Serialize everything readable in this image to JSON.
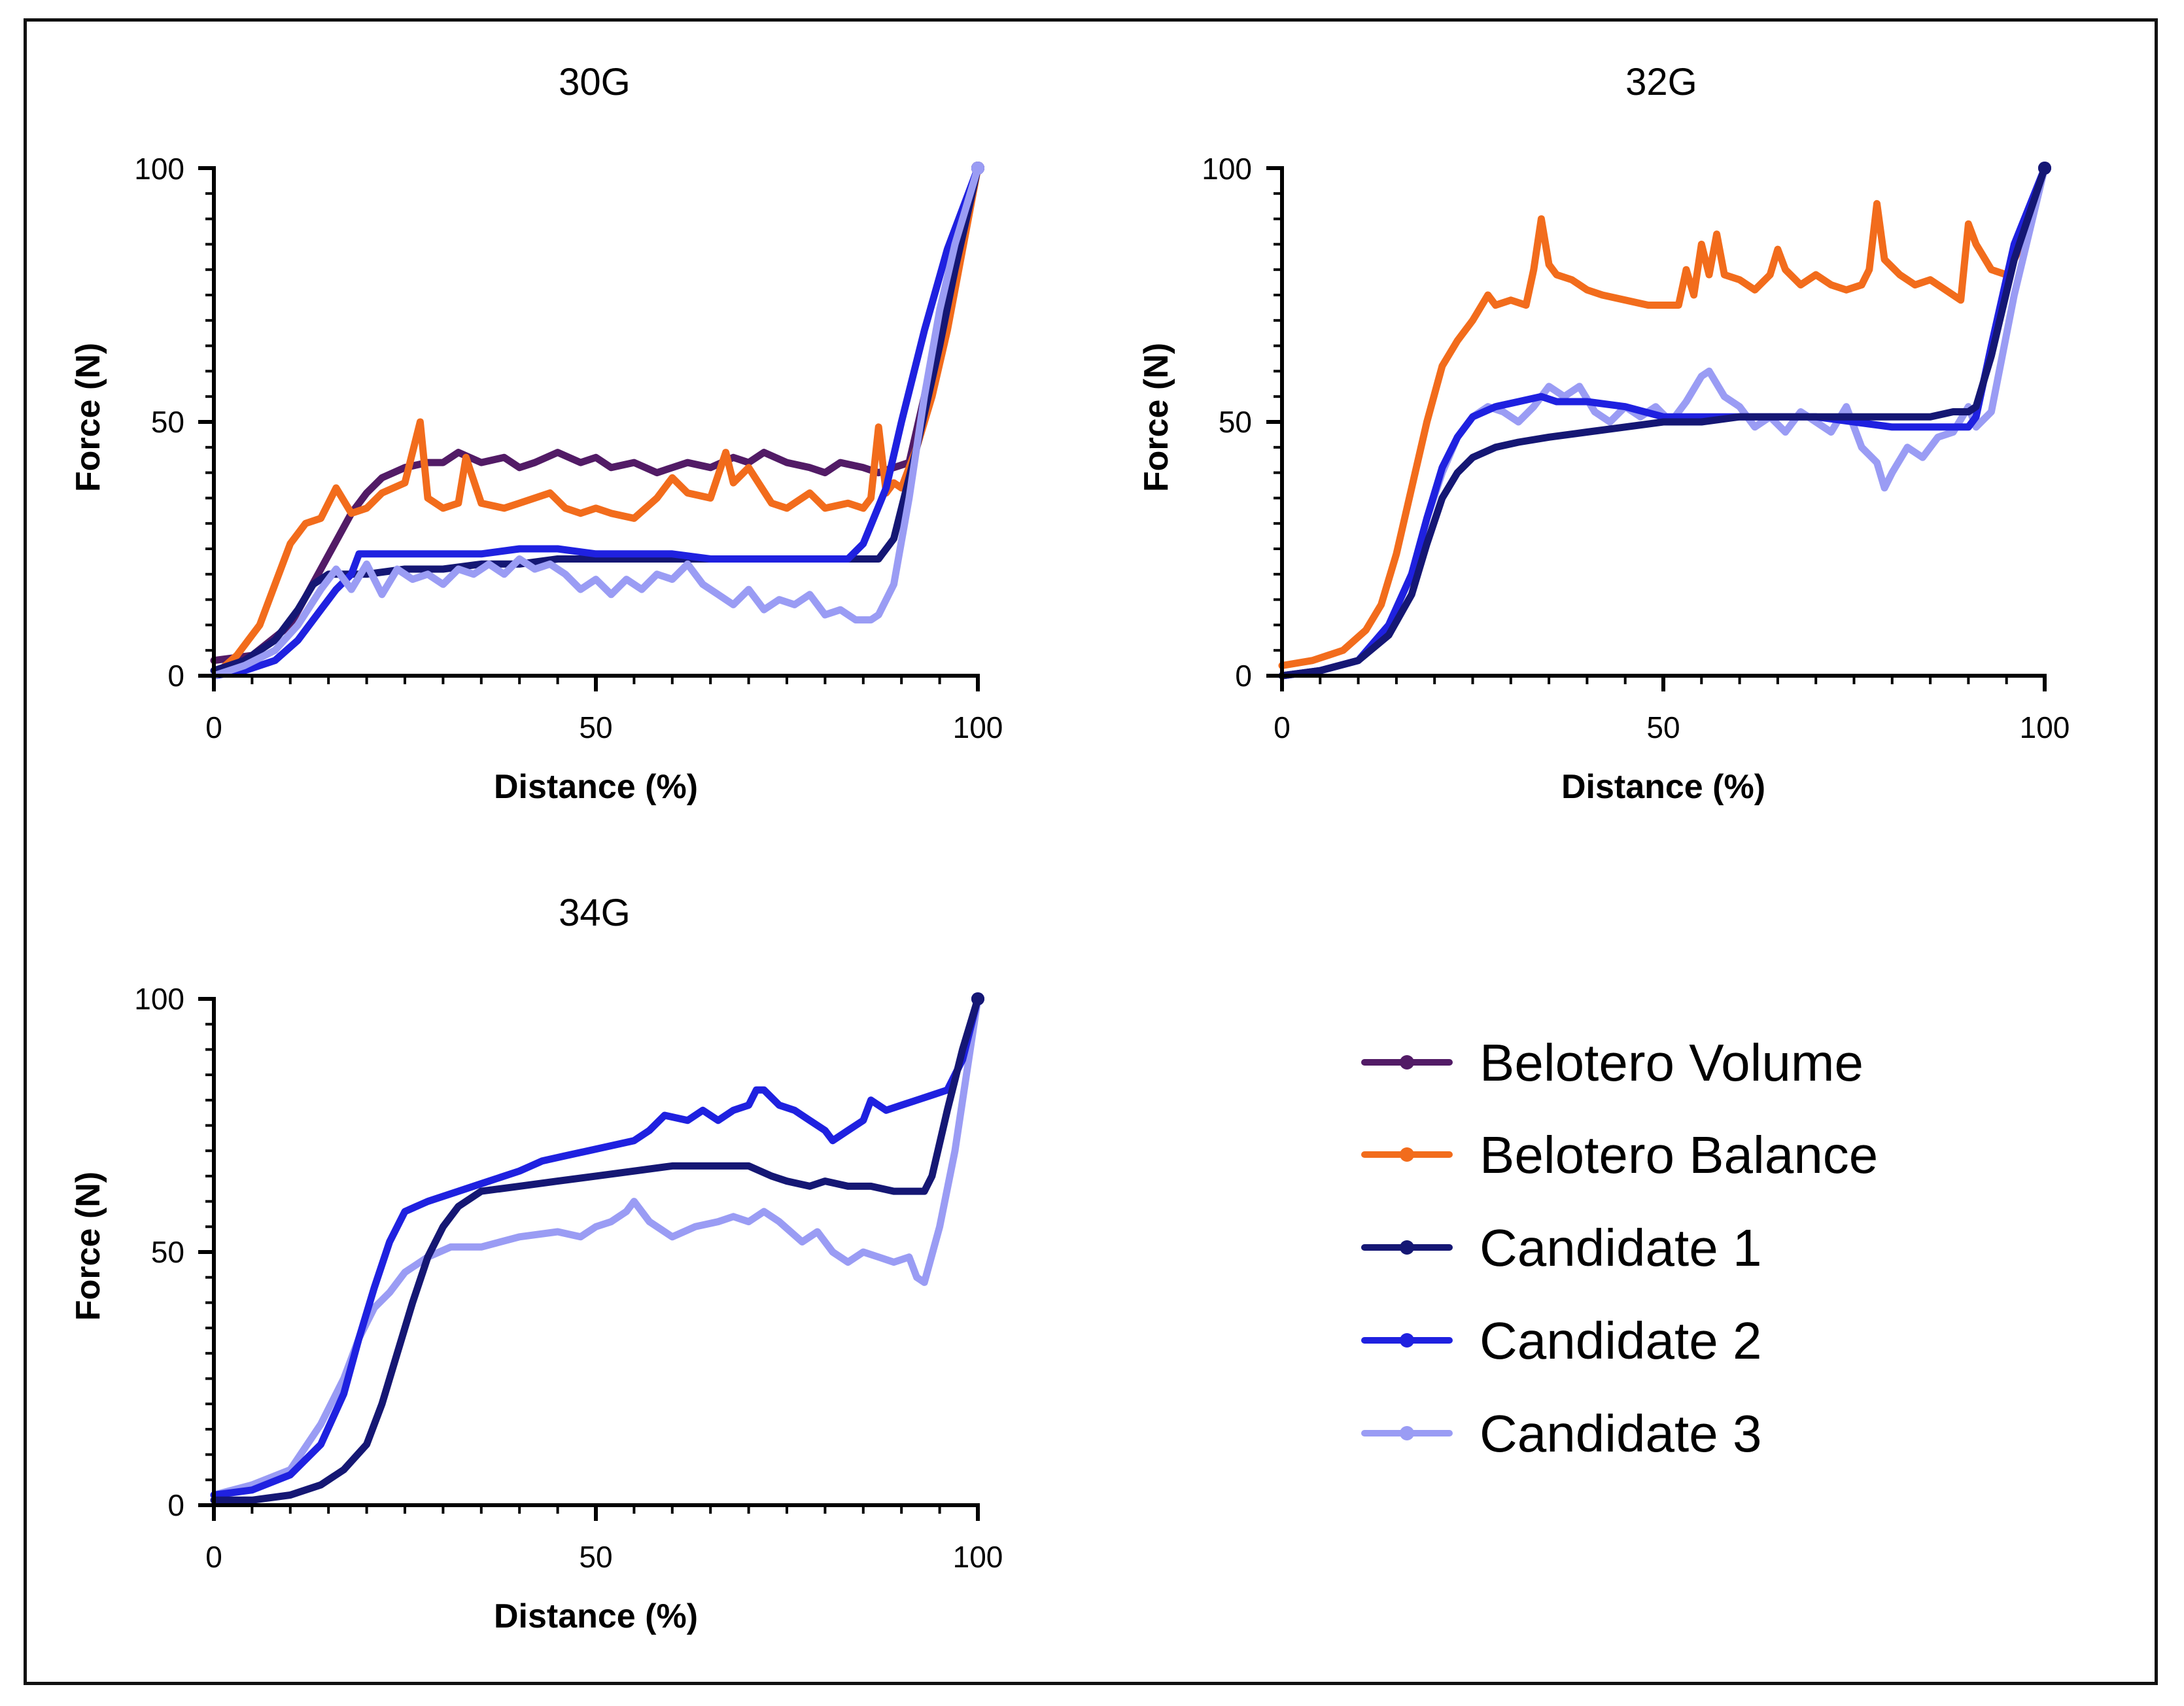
{
  "chart_data": [
    {
      "type": "line",
      "title": "30G",
      "xlabel": "Distance (%)",
      "ylabel": "Force (N)",
      "xlim": [
        0,
        100
      ],
      "ylim": [
        0,
        100
      ],
      "xticks": [
        "0",
        "50",
        "100"
      ],
      "yticks": [
        "0",
        "50",
        "100"
      ],
      "series": [
        {
          "name": "Belotero Volume",
          "color": "#521b66",
          "x": [
            0,
            5,
            10,
            14,
            18,
            20,
            22,
            25,
            28,
            30,
            32,
            35,
            38,
            40,
            42,
            45,
            48,
            50,
            52,
            55,
            58,
            60,
            62,
            65,
            68,
            70,
            72,
            75,
            78,
            80,
            82,
            85,
            87,
            89,
            91,
            93,
            95,
            97,
            100
          ],
          "y": [
            3,
            4,
            10,
            21,
            32,
            36,
            39,
            41,
            42,
            42,
            44,
            42,
            43,
            41,
            42,
            44,
            42,
            43,
            41,
            42,
            40,
            41,
            42,
            41,
            43,
            42,
            44,
            42,
            41,
            40,
            42,
            41,
            40,
            41,
            42,
            55,
            70,
            84,
            100
          ]
        },
        {
          "name": "Belotero Balance",
          "color": "#f26c1c",
          "x": [
            0,
            3,
            6,
            8,
            10,
            12,
            14,
            16,
            18,
            20,
            22,
            25,
            27,
            28,
            30,
            32,
            33,
            35,
            38,
            40,
            44,
            46,
            48,
            50,
            52,
            55,
            58,
            60,
            62,
            65,
            67,
            68,
            70,
            73,
            75,
            78,
            80,
            83,
            85,
            86,
            87,
            88,
            89,
            90,
            92,
            94,
            96,
            100
          ],
          "y": [
            0,
            4,
            10,
            18,
            26,
            30,
            31,
            37,
            32,
            33,
            36,
            38,
            50,
            35,
            33,
            34,
            43,
            34,
            33,
            34,
            36,
            33,
            32,
            33,
            32,
            31,
            35,
            39,
            36,
            35,
            44,
            38,
            41,
            34,
            33,
            36,
            33,
            34,
            33,
            35,
            49,
            36,
            38,
            37,
            45,
            55,
            68,
            100
          ]
        },
        {
          "name": "Candidate 1",
          "color": "#151774",
          "x": [
            0,
            4,
            8,
            11,
            13,
            15,
            17,
            20,
            25,
            30,
            35,
            40,
            45,
            50,
            55,
            60,
            65,
            70,
            75,
            80,
            85,
            87,
            89,
            92,
            95,
            97,
            100
          ],
          "y": [
            1,
            3,
            7,
            13,
            18,
            20,
            20,
            20,
            21,
            21,
            22,
            22,
            23,
            23,
            23,
            23,
            23,
            23,
            23,
            23,
            23,
            23,
            27,
            45,
            65,
            80,
            100
          ]
        },
        {
          "name": "Candidate 2",
          "color": "#1f21e0",
          "x": [
            0,
            4,
            8,
            11,
            14,
            16,
            18,
            19,
            22,
            25,
            30,
            35,
            40,
            45,
            50,
            55,
            60,
            65,
            70,
            75,
            80,
            83,
            85,
            88,
            90,
            93,
            96,
            100
          ],
          "y": [
            0,
            1,
            3,
            7,
            13,
            17,
            20,
            24,
            24,
            24,
            24,
            24,
            25,
            25,
            24,
            24,
            24,
            23,
            23,
            23,
            23,
            23,
            26,
            37,
            50,
            68,
            84,
            100
          ]
        },
        {
          "name": "Candidate 3",
          "color": "#9a9cf4",
          "x": [
            0,
            4,
            8,
            11,
            14,
            16,
            18,
            20,
            22,
            24,
            26,
            28,
            30,
            32,
            34,
            36,
            38,
            40,
            42,
            44,
            46,
            48,
            50,
            52,
            54,
            56,
            58,
            60,
            62,
            64,
            66,
            68,
            70,
            72,
            74,
            76,
            78,
            80,
            82,
            84,
            86,
            87,
            89,
            91,
            93,
            95,
            97,
            100
          ],
          "y": [
            0,
            2,
            5,
            10,
            17,
            21,
            17,
            22,
            16,
            21,
            19,
            20,
            18,
            21,
            20,
            22,
            20,
            23,
            21,
            22,
            20,
            17,
            19,
            16,
            19,
            17,
            20,
            19,
            22,
            18,
            16,
            14,
            17,
            13,
            15,
            14,
            16,
            12,
            13,
            11,
            11,
            12,
            18,
            35,
            55,
            72,
            85,
            100
          ]
        }
      ]
    },
    {
      "type": "line",
      "title": "32G",
      "xlabel": "Distance (%)",
      "ylabel": "Force (N)",
      "xlim": [
        0,
        100
      ],
      "ylim": [
        0,
        100
      ],
      "xticks": [
        "0",
        "50",
        "100"
      ],
      "yticks": [
        "0",
        "50",
        "100"
      ],
      "series": [
        {
          "name": "Belotero Balance",
          "color": "#f26c1c",
          "x": [
            0,
            4,
            8,
            11,
            13,
            15,
            17,
            19,
            21,
            23,
            25,
            27,
            28,
            30,
            32,
            33,
            34,
            35,
            36,
            38,
            40,
            42,
            45,
            48,
            50,
            52,
            53,
            54,
            55,
            56,
            57,
            58,
            60,
            62,
            64,
            65,
            66,
            68,
            70,
            72,
            74,
            76,
            77,
            78,
            79,
            81,
            83,
            85,
            87,
            89,
            90,
            91,
            93,
            95,
            97,
            100
          ],
          "y": [
            2,
            3,
            5,
            9,
            14,
            24,
            37,
            50,
            61,
            66,
            70,
            75,
            73,
            74,
            73,
            80,
            90,
            81,
            79,
            78,
            76,
            75,
            74,
            73,
            73,
            73,
            80,
            75,
            85,
            79,
            87,
            79,
            78,
            76,
            79,
            84,
            80,
            77,
            79,
            77,
            76,
            77,
            80,
            93,
            82,
            79,
            77,
            78,
            76,
            74,
            89,
            85,
            80,
            79,
            85,
            100
          ]
        },
        {
          "name": "Candidate 3",
          "color": "#9a9cf4",
          "x": [
            0,
            5,
            10,
            14,
            17,
            19,
            21,
            23,
            25,
            27,
            29,
            31,
            33,
            35,
            37,
            39,
            41,
            43,
            45,
            47,
            49,
            51,
            53,
            55,
            56,
            58,
            60,
            62,
            64,
            66,
            68,
            70,
            72,
            74,
            76,
            78,
            79,
            80,
            82,
            84,
            86,
            88,
            90,
            91,
            93,
            96,
            100
          ],
          "y": [
            0,
            1,
            3,
            10,
            20,
            31,
            40,
            47,
            51,
            53,
            52,
            50,
            53,
            57,
            55,
            57,
            52,
            50,
            53,
            51,
            53,
            50,
            54,
            59,
            60,
            55,
            53,
            49,
            51,
            48,
            52,
            50,
            48,
            53,
            45,
            42,
            37,
            40,
            45,
            43,
            47,
            48,
            53,
            49,
            52,
            75,
            100
          ]
        },
        {
          "name": "Candidate 2",
          "color": "#1f21e0",
          "x": [
            0,
            5,
            10,
            14,
            17,
            19,
            21,
            23,
            25,
            28,
            31,
            34,
            36,
            40,
            45,
            50,
            55,
            60,
            65,
            70,
            75,
            80,
            85,
            88,
            90,
            91,
            93,
            96,
            100
          ],
          "y": [
            0,
            1,
            3,
            10,
            20,
            31,
            41,
            47,
            51,
            53,
            54,
            55,
            54,
            54,
            53,
            51,
            51,
            51,
            51,
            51,
            50,
            49,
            49,
            49,
            49,
            51,
            65,
            85,
            100
          ]
        },
        {
          "name": "Candidate 1",
          "color": "#151774",
          "x": [
            0,
            5,
            10,
            14,
            17,
            19,
            21,
            23,
            25,
            28,
            31,
            35,
            40,
            45,
            50,
            55,
            60,
            65,
            70,
            75,
            80,
            85,
            88,
            90,
            91,
            93,
            96,
            100
          ],
          "y": [
            0,
            1,
            3,
            8,
            16,
            26,
            35,
            40,
            43,
            45,
            46,
            47,
            48,
            49,
            50,
            50,
            51,
            51,
            51,
            51,
            51,
            51,
            52,
            52,
            53,
            63,
            82,
            100
          ]
        }
      ]
    },
    {
      "type": "line",
      "title": "34G",
      "xlabel": "Distance (%)",
      "ylabel": "Force (N)",
      "xlim": [
        0,
        100
      ],
      "ylim": [
        0,
        100
      ],
      "xticks": [
        "0",
        "50",
        "100"
      ],
      "yticks": [
        "0",
        "50",
        "100"
      ],
      "series": [
        {
          "name": "Candidate 3",
          "color": "#9a9cf4",
          "x": [
            0,
            5,
            10,
            14,
            17,
            19,
            21,
            23,
            25,
            28,
            31,
            35,
            40,
            45,
            48,
            50,
            52,
            54,
            55,
            57,
            60,
            63,
            66,
            68,
            70,
            72,
            74,
            77,
            79,
            81,
            83,
            85,
            87,
            89,
            91,
            92,
            93,
            95,
            97,
            100
          ],
          "y": [
            2,
            4,
            7,
            16,
            25,
            33,
            39,
            42,
            46,
            49,
            51,
            51,
            53,
            54,
            53,
            55,
            56,
            58,
            60,
            56,
            53,
            55,
            56,
            57,
            56,
            58,
            56,
            52,
            54,
            50,
            48,
            50,
            49,
            48,
            49,
            45,
            44,
            55,
            70,
            100
          ]
        },
        {
          "name": "Candidate 2",
          "color": "#1f21e0",
          "x": [
            0,
            5,
            10,
            14,
            17,
            19,
            21,
            23,
            25,
            28,
            32,
            36,
            40,
            43,
            46,
            49,
            52,
            55,
            57,
            59,
            62,
            64,
            66,
            68,
            70,
            71,
            72,
            74,
            76,
            78,
            80,
            81,
            83,
            85,
            86,
            88,
            90,
            92,
            94,
            96,
            98,
            100
          ],
          "y": [
            2,
            3,
            6,
            12,
            22,
            33,
            43,
            52,
            58,
            60,
            62,
            64,
            66,
            68,
            69,
            70,
            71,
            72,
            74,
            77,
            76,
            78,
            76,
            78,
            79,
            82,
            82,
            79,
            78,
            76,
            74,
            72,
            74,
            76,
            80,
            78,
            79,
            80,
            81,
            82,
            88,
            100
          ]
        },
        {
          "name": "Candidate 1",
          "color": "#151774",
          "x": [
            0,
            5,
            10,
            14,
            17,
            20,
            22,
            24,
            26,
            28,
            30,
            32,
            35,
            40,
            45,
            50,
            55,
            60,
            65,
            70,
            73,
            75,
            78,
            80,
            83,
            86,
            89,
            91,
            93,
            94,
            96,
            98,
            100
          ],
          "y": [
            1,
            1,
            2,
            4,
            7,
            12,
            20,
            30,
            40,
            49,
            55,
            59,
            62,
            63,
            64,
            65,
            66,
            67,
            67,
            67,
            65,
            64,
            63,
            64,
            63,
            63,
            62,
            62,
            62,
            65,
            78,
            90,
            100
          ]
        }
      ]
    }
  ],
  "legend": [
    {
      "label": "Belotero Volume",
      "color": "#521b66"
    },
    {
      "label": "Belotero Balance",
      "color": "#f26c1c"
    },
    {
      "label": "Candidate 1",
      "color": "#151774"
    },
    {
      "label": "Candidate 2",
      "color": "#1f21e0"
    },
    {
      "label": "Candidate 3",
      "color": "#9a9cf4"
    }
  ]
}
